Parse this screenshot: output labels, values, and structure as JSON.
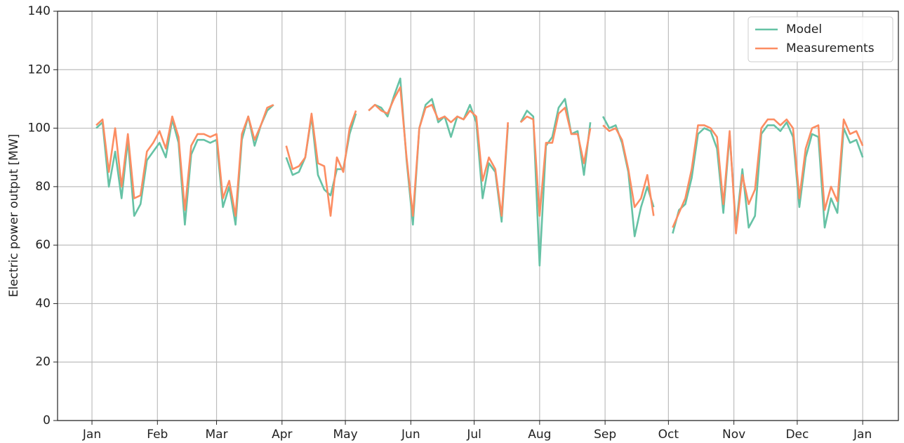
{
  "chart_data": {
    "type": "line",
    "y_label": "Electric power output [MW]",
    "x": [
      2,
      5,
      8,
      11,
      14,
      17,
      20,
      23,
      26,
      29,
      32,
      35,
      38,
      41,
      44,
      47,
      50,
      53,
      56,
      59,
      62,
      65,
      68,
      71,
      74,
      77,
      80,
      83,
      86,
      89,
      92,
      95,
      98,
      101,
      104,
      107,
      110,
      113,
      116,
      119,
      122,
      125,
      128,
      131,
      134,
      137,
      140,
      143,
      146,
      149,
      152,
      155,
      158,
      161,
      164,
      167,
      170,
      173,
      176,
      179,
      182,
      185,
      188,
      191,
      194,
      197,
      200,
      203,
      206,
      209,
      212,
      215,
      218,
      221,
      224,
      227,
      230,
      233,
      236,
      239,
      242,
      245,
      248,
      251,
      254,
      257,
      260,
      263,
      266,
      269,
      272,
      275,
      278,
      281,
      284,
      287,
      290,
      293,
      296,
      299,
      302,
      305,
      308,
      311,
      314,
      317,
      320,
      323,
      326,
      329,
      332,
      335,
      338,
      341,
      344,
      347,
      350,
      353,
      356,
      359,
      362,
      365
    ],
    "series": [
      {
        "name": "Model",
        "color": "#66c2a5",
        "values": [
          100,
          102,
          80,
          92,
          76,
          96,
          70,
          74,
          89,
          92,
          95,
          90,
          103,
          95,
          67,
          91,
          96,
          96,
          95,
          96,
          73,
          80,
          67,
          96,
          104,
          94,
          101,
          106,
          108,
          null,
          90,
          84,
          85,
          90,
          104,
          84,
          79,
          77,
          86,
          86,
          98,
          105,
          null,
          106,
          108,
          107,
          104,
          111,
          117,
          89,
          67,
          100,
          108,
          110,
          102,
          104,
          97,
          104,
          103,
          108,
          102,
          76,
          88,
          85,
          68,
          101,
          null,
          102,
          106,
          104,
          53,
          94,
          97,
          107,
          110,
          98,
          99,
          84,
          102,
          null,
          104,
          100,
          101,
          95,
          85,
          63,
          73,
          80,
          73,
          null,
          null,
          64,
          72,
          74,
          83,
          98,
          100,
          99,
          93,
          71,
          98,
          66,
          86,
          66,
          70,
          98,
          101,
          101,
          99,
          102,
          97,
          73,
          90,
          98,
          97,
          66,
          76,
          71,
          100,
          95,
          96,
          90
        ]
      },
      {
        "name": "Measurements",
        "color": "#fc8d62",
        "values": [
          101,
          103,
          85,
          100,
          80,
          98,
          76,
          77,
          92,
          95,
          99,
          93,
          104,
          97,
          72,
          94,
          98,
          98,
          97,
          98,
          76,
          82,
          70,
          98,
          104,
          96,
          101,
          107,
          108,
          null,
          94,
          86,
          87,
          90,
          105,
          88,
          87,
          70,
          90,
          85,
          100,
          106,
          null,
          106,
          108,
          106,
          105,
          110,
          114,
          90,
          70,
          100,
          107,
          108,
          103,
          104,
          102,
          104,
          103,
          106,
          104,
          82,
          90,
          86,
          70,
          102,
          null,
          102,
          104,
          103,
          70,
          95,
          95,
          105,
          107,
          98,
          98,
          88,
          100,
          null,
          101,
          99,
          100,
          96,
          86,
          73,
          76,
          84,
          70,
          null,
          null,
          66,
          71,
          76,
          86,
          101,
          101,
          100,
          97,
          74,
          99,
          64,
          84,
          74,
          79,
          100,
          103,
          103,
          101,
          103,
          100,
          76,
          93,
          100,
          101,
          72,
          80,
          75,
          103,
          98,
          99,
          94
        ]
      }
    ],
    "xlim": [
      -16.3,
      381.9
    ],
    "xticks": [
      {
        "value": 0,
        "label": "Jan"
      },
      {
        "value": 31,
        "label": "Feb"
      },
      {
        "value": 59,
        "label": "Mar"
      },
      {
        "value": 90,
        "label": "Apr"
      },
      {
        "value": 120,
        "label": "May"
      },
      {
        "value": 151,
        "label": "Jun"
      },
      {
        "value": 181,
        "label": "Jul"
      },
      {
        "value": 212,
        "label": "Aug"
      },
      {
        "value": 243,
        "label": "Sep"
      },
      {
        "value": 273,
        "label": "Oct"
      },
      {
        "value": 304,
        "label": "Nov"
      },
      {
        "value": 334,
        "label": "Dec"
      },
      {
        "value": 365,
        "label": "Jan"
      }
    ],
    "ylim": [
      0,
      140
    ],
    "yticks": [
      0,
      20,
      40,
      60,
      80,
      100,
      120,
      140
    ],
    "grid": true,
    "legend": "upper right"
  }
}
